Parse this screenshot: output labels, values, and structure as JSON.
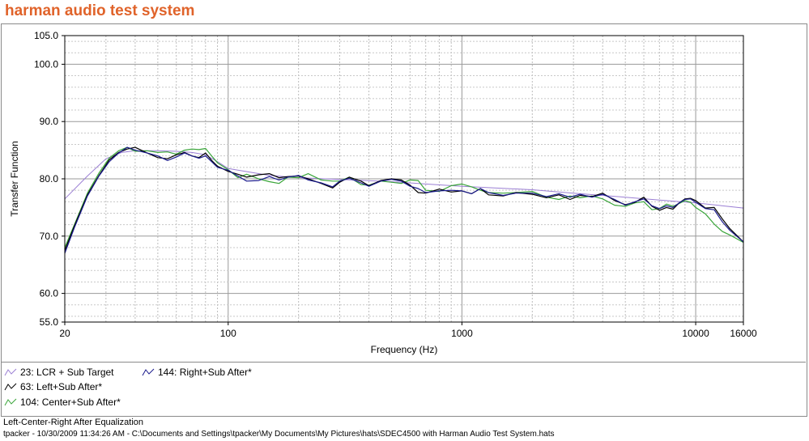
{
  "app": {
    "title": "harman audio test system"
  },
  "chart_data": {
    "type": "line",
    "xlabel": "Frequency (Hz)",
    "ylabel": "Transfer Function",
    "x_scale": "log",
    "xlim": [
      20,
      16000
    ],
    "ylim": [
      55,
      105
    ],
    "x_ticks": [
      20,
      100,
      1000,
      10000,
      16000
    ],
    "x_tick_labels": [
      "20",
      "100",
      "1000",
      "10000",
      "16000"
    ],
    "y_ticks": [
      55,
      60,
      70,
      80,
      90,
      100,
      105
    ],
    "y_tick_labels": [
      "55.0",
      "60.0",
      "70.0",
      "80.0",
      "90.0",
      "100.0",
      "105.0"
    ],
    "grid": true,
    "legend_position": "bottom-left",
    "series": [
      {
        "name": "23: LCR + Sub Target",
        "color": "#9b7fd4",
        "points": [
          [
            20,
            76.5
          ],
          [
            25,
            80.5
          ],
          [
            30,
            83.5
          ],
          [
            35,
            84.6
          ],
          [
            40,
            84.9
          ],
          [
            50,
            84.9
          ],
          [
            60,
            84.8
          ],
          [
            70,
            84.6
          ],
          [
            80,
            84.2
          ],
          [
            90,
            83.0
          ],
          [
            100,
            81.8
          ],
          [
            150,
            80.6
          ],
          [
            200,
            80.2
          ],
          [
            300,
            79.9
          ],
          [
            500,
            79.5
          ],
          [
            700,
            79.1
          ],
          [
            1000,
            78.7
          ],
          [
            2000,
            78.1
          ],
          [
            3000,
            77.5
          ],
          [
            5000,
            76.8
          ],
          [
            7000,
            76.3
          ],
          [
            10000,
            75.8
          ],
          [
            16000,
            74.9
          ]
        ]
      },
      {
        "name": "144: Right+Sub After*",
        "color": "#1a1a8c",
        "points": [
          [
            20,
            67
          ],
          [
            22,
            71.5
          ],
          [
            25,
            77
          ],
          [
            28,
            80.5
          ],
          [
            31,
            83
          ],
          [
            34,
            84.5
          ],
          [
            37,
            85.5
          ],
          [
            40,
            85
          ],
          [
            45,
            84.5
          ],
          [
            50,
            84
          ],
          [
            55,
            83.2
          ],
          [
            60,
            83.8
          ],
          [
            65,
            84.5
          ],
          [
            70,
            84
          ],
          [
            75,
            83.6
          ],
          [
            80,
            84
          ],
          [
            85,
            83
          ],
          [
            90,
            82
          ],
          [
            100,
            81.5
          ],
          [
            110,
            80.5
          ],
          [
            120,
            79.6
          ],
          [
            135,
            79.7
          ],
          [
            150,
            80.4
          ],
          [
            165,
            79.8
          ],
          [
            180,
            80.3
          ],
          [
            200,
            80.6
          ],
          [
            220,
            79.8
          ],
          [
            250,
            79.3
          ],
          [
            280,
            78.6
          ],
          [
            300,
            79.6
          ],
          [
            330,
            80.1
          ],
          [
            370,
            79.3
          ],
          [
            400,
            78.7
          ],
          [
            450,
            79.6
          ],
          [
            500,
            79.9
          ],
          [
            550,
            79.6
          ],
          [
            600,
            78.7
          ],
          [
            650,
            78.3
          ],
          [
            700,
            77.6
          ],
          [
            800,
            77.9
          ],
          [
            900,
            78.0
          ],
          [
            1000,
            77.9
          ],
          [
            1100,
            77.4
          ],
          [
            1200,
            78.3
          ],
          [
            1300,
            77.6
          ],
          [
            1500,
            77.1
          ],
          [
            1700,
            77.5
          ],
          [
            2000,
            77.5
          ],
          [
            2300,
            76.9
          ],
          [
            2600,
            77.4
          ],
          [
            2900,
            76.8
          ],
          [
            3200,
            77.3
          ],
          [
            3600,
            76.8
          ],
          [
            4000,
            77.3
          ],
          [
            4500,
            76.4
          ],
          [
            5000,
            75.4
          ],
          [
            5500,
            76.0
          ],
          [
            6000,
            76.5
          ],
          [
            6500,
            75.3
          ],
          [
            7000,
            74.8
          ],
          [
            7500,
            75.3
          ],
          [
            8000,
            75.0
          ],
          [
            8500,
            75.8
          ],
          [
            9000,
            76.4
          ],
          [
            9500,
            76.5
          ],
          [
            10000,
            75.9
          ],
          [
            11000,
            74.8
          ],
          [
            12000,
            74.6
          ],
          [
            13000,
            72.5
          ],
          [
            14000,
            71.0
          ],
          [
            16000,
            69.0
          ]
        ]
      },
      {
        "name": "63: Left+Sub After*",
        "color": "#000000",
        "points": [
          [
            20,
            67.5
          ],
          [
            22,
            71.8
          ],
          [
            25,
            77.2
          ],
          [
            28,
            80.6
          ],
          [
            31,
            83.3
          ],
          [
            34,
            84.6
          ],
          [
            37,
            85.2
          ],
          [
            40,
            85.5
          ],
          [
            45,
            84.5
          ],
          [
            50,
            83.7
          ],
          [
            55,
            83.5
          ],
          [
            60,
            84.2
          ],
          [
            65,
            84.6
          ],
          [
            70,
            84.0
          ],
          [
            75,
            83.7
          ],
          [
            80,
            84.5
          ],
          [
            85,
            83.2
          ],
          [
            90,
            82.2
          ],
          [
            100,
            81.3
          ],
          [
            110,
            80.8
          ],
          [
            120,
            80.3
          ],
          [
            135,
            80.7
          ],
          [
            150,
            80.9
          ],
          [
            165,
            80.2
          ],
          [
            180,
            80.4
          ],
          [
            200,
            80.5
          ],
          [
            220,
            80.0
          ],
          [
            250,
            79.2
          ],
          [
            280,
            78.4
          ],
          [
            300,
            79.4
          ],
          [
            330,
            80.3
          ],
          [
            370,
            79.6
          ],
          [
            400,
            78.8
          ],
          [
            450,
            79.7
          ],
          [
            500,
            80.0
          ],
          [
            550,
            79.8
          ],
          [
            600,
            78.9
          ],
          [
            650,
            77.6
          ],
          [
            700,
            77.5
          ],
          [
            800,
            78.2
          ],
          [
            900,
            77.7
          ],
          [
            1000,
            77.9
          ],
          [
            1100,
            77.4
          ],
          [
            1200,
            78.3
          ],
          [
            1300,
            77.2
          ],
          [
            1500,
            77.0
          ],
          [
            1700,
            77.6
          ],
          [
            2000,
            77.3
          ],
          [
            2300,
            76.7
          ],
          [
            2600,
            77.2
          ],
          [
            2900,
            76.4
          ],
          [
            3200,
            77.1
          ],
          [
            3600,
            76.9
          ],
          [
            4000,
            77.5
          ],
          [
            4500,
            76.2
          ],
          [
            5000,
            75.5
          ],
          [
            5500,
            75.9
          ],
          [
            6000,
            76.8
          ],
          [
            6500,
            75.2
          ],
          [
            7000,
            74.5
          ],
          [
            7500,
            75.0
          ],
          [
            8000,
            74.7
          ],
          [
            8500,
            75.8
          ],
          [
            9000,
            76.5
          ],
          [
            9500,
            76.6
          ],
          [
            10000,
            76.2
          ],
          [
            11000,
            74.9
          ],
          [
            12000,
            75.0
          ],
          [
            13000,
            73.0
          ],
          [
            14000,
            71.3
          ],
          [
            16000,
            69.0
          ]
        ]
      },
      {
        "name": "104: Center+Sub After*",
        "color": "#3aa53a",
        "points": [
          [
            20,
            68
          ],
          [
            22,
            72
          ],
          [
            25,
            77.5
          ],
          [
            28,
            81
          ],
          [
            31,
            83.6
          ],
          [
            34,
            84.9
          ],
          [
            37,
            85.5
          ],
          [
            40,
            84.8
          ],
          [
            45,
            84.9
          ],
          [
            50,
            84.6
          ],
          [
            55,
            84.7
          ],
          [
            60,
            84.3
          ],
          [
            65,
            85.0
          ],
          [
            70,
            85.2
          ],
          [
            75,
            85.1
          ],
          [
            80,
            85.3
          ],
          [
            85,
            84.0
          ],
          [
            90,
            82.8
          ],
          [
            100,
            81.6
          ],
          [
            110,
            80.2
          ],
          [
            120,
            80.8
          ],
          [
            135,
            80.0
          ],
          [
            150,
            79.5
          ],
          [
            165,
            79.2
          ],
          [
            180,
            80.3
          ],
          [
            200,
            80.2
          ],
          [
            220,
            80.9
          ],
          [
            250,
            79.8
          ],
          [
            280,
            79.6
          ],
          [
            300,
            79.6
          ],
          [
            330,
            80.3
          ],
          [
            370,
            79.0
          ],
          [
            400,
            78.9
          ],
          [
            450,
            79.6
          ],
          [
            500,
            79.4
          ],
          [
            550,
            79.2
          ],
          [
            600,
            79.8
          ],
          [
            650,
            79.7
          ],
          [
            700,
            78.0
          ],
          [
            800,
            77.8
          ],
          [
            900,
            78.8
          ],
          [
            1000,
            79.1
          ],
          [
            1100,
            78.6
          ],
          [
            1200,
            78.0
          ],
          [
            1300,
            77.6
          ],
          [
            1500,
            77.5
          ],
          [
            1700,
            77.6
          ],
          [
            2000,
            77.8
          ],
          [
            2300,
            76.8
          ],
          [
            2600,
            76.4
          ],
          [
            2900,
            77.0
          ],
          [
            3200,
            76.7
          ],
          [
            3600,
            77.0
          ],
          [
            4000,
            76.5
          ],
          [
            4500,
            75.4
          ],
          [
            5000,
            75.2
          ],
          [
            5500,
            75.8
          ],
          [
            6000,
            76.0
          ],
          [
            6500,
            74.6
          ],
          [
            7000,
            74.8
          ],
          [
            7500,
            75.6
          ],
          [
            8000,
            75.2
          ],
          [
            8500,
            75.7
          ],
          [
            9000,
            76.2
          ],
          [
            9500,
            75.9
          ],
          [
            10000,
            75.0
          ],
          [
            11000,
            73.9
          ],
          [
            12000,
            72.1
          ],
          [
            13000,
            70.8
          ],
          [
            14000,
            70.2
          ],
          [
            16000,
            68.9
          ]
        ]
      }
    ]
  },
  "legend": {
    "items": [
      {
        "label": "23: LCR + Sub Target"
      },
      {
        "label": "144: Right+Sub After*"
      },
      {
        "label": "63: Left+Sub After*"
      },
      {
        "label": "104: Center+Sub After*"
      }
    ]
  },
  "caption": "Left-Center-Right After Equalization",
  "footer": "tpacker - 10/30/2009 11:34:26 AM - C:\\Documents and Settings\\tpacker\\My Documents\\My Pictures\\hats\\SDEC4500 with Harman Audio Test System.hats"
}
